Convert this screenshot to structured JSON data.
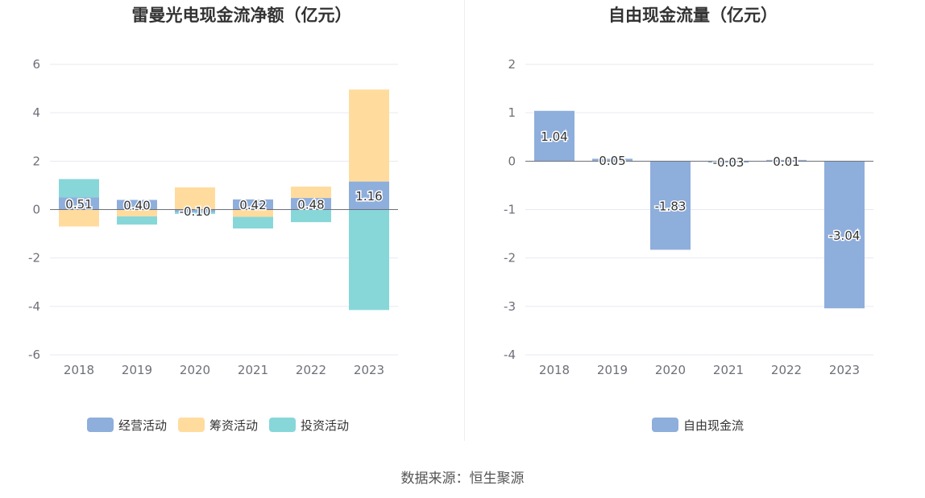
{
  "chart_data": [
    {
      "type": "bar",
      "stacked": true,
      "title": "雷曼光电现金流净额（亿元）",
      "categories": [
        "2018",
        "2019",
        "2020",
        "2021",
        "2022",
        "2023"
      ],
      "series": [
        {
          "name": "经营活动",
          "color": "#8eaedc",
          "values": [
            0.51,
            0.4,
            -0.1,
            0.42,
            0.48,
            1.16
          ],
          "labels": [
            "0.51",
            "0.40",
            "-0.10",
            "0.42",
            "0.48",
            "1.16"
          ]
        },
        {
          "name": "筹资活动",
          "color": "#ffdc9e",
          "values": [
            -0.7,
            -0.28,
            0.92,
            -0.3,
            0.47,
            3.8
          ]
        },
        {
          "name": "投资活动",
          "color": "#87d7d9",
          "values": [
            0.75,
            -0.34,
            -0.08,
            -0.48,
            -0.52,
            -4.15
          ]
        }
      ],
      "ylim": [
        -6,
        6
      ],
      "yticks": [
        "6",
        "4",
        "2",
        "0",
        "-2",
        "-4",
        "-6"
      ],
      "grid": true,
      "legend": "bottom"
    },
    {
      "type": "bar",
      "title": "自由现金流量（亿元）",
      "categories": [
        "2018",
        "2019",
        "2020",
        "2021",
        "2022",
        "2023"
      ],
      "series": [
        {
          "name": "自由现金流",
          "color": "#8eaedc",
          "values": [
            1.04,
            0.05,
            -1.83,
            -0.03,
            0.01,
            -3.04
          ],
          "labels": [
            "1.04",
            "0.05",
            "-1.83",
            "-0.03",
            "0.01",
            "-3.04"
          ]
        }
      ],
      "ylim": [
        -4,
        2
      ],
      "yticks": [
        "2",
        "1",
        "0",
        "-1",
        "-2",
        "-3",
        "-4"
      ],
      "grid": true,
      "legend": "bottom"
    }
  ],
  "source_text": "数据来源：恒生聚源"
}
